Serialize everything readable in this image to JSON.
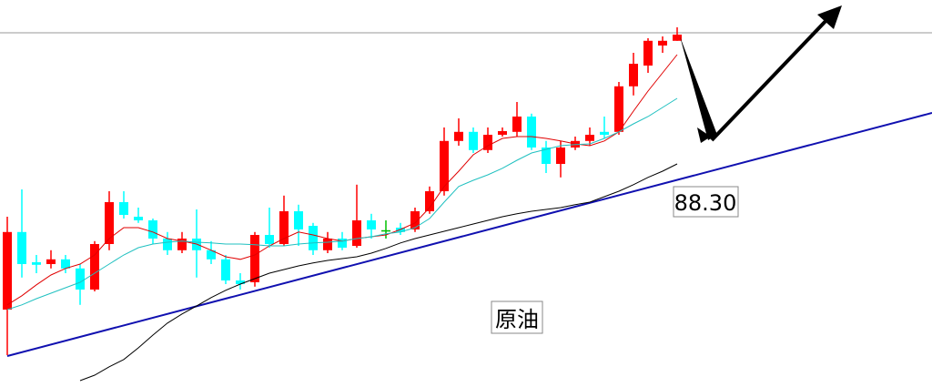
{
  "chart_data": {
    "type": "candlestick",
    "ylim": [
      82.375,
      93
    ],
    "up_color": "#ff0000",
    "down_color": "#00ffff",
    "flat_color": "#00c000",
    "open": [
      84.5,
      86.63,
      85.8,
      85.75,
      85.88,
      85.63,
      85.05,
      86.3,
      87.45,
      87.05,
      86.95,
      86.45,
      86.13,
      86.45,
      86.13,
      85.88,
      85.3,
      85.25,
      86.55,
      86.3,
      87.2,
      86.8,
      86.13,
      86.45,
      86.25,
      86.95,
      86.68,
      86.75,
      86.7,
      87.2,
      87.75,
      89.13,
      89.38,
      88.88,
      89.3,
      89.38,
      89.8,
      88.95,
      88.5,
      88.95,
      89.13,
      89.38,
      89.38,
      90.63,
      91.2,
      91.75,
      91.88
    ],
    "high": [
      87.05,
      87.8,
      86.0,
      86.13,
      86.0,
      85.75,
      86.38,
      87.75,
      87.75,
      87.3,
      87.0,
      86.63,
      86.63,
      87.25,
      86.38,
      86.0,
      85.5,
      86.63,
      87.3,
      87.63,
      87.38,
      86.88,
      86.63,
      86.63,
      87.93,
      87.13,
      86.95,
      86.88,
      87.3,
      87.88,
      89.5,
      89.75,
      89.5,
      89.5,
      89.5,
      90.2,
      89.88,
      89.13,
      89.13,
      89.25,
      89.5,
      89.8,
      90.75,
      91.55,
      91.95,
      92.0,
      92.25
    ],
    "low": [
      83.25,
      85.38,
      85.5,
      85.63,
      85.5,
      84.63,
      85.0,
      86.13,
      87.0,
      86.88,
      86.3,
      86.0,
      86.05,
      85.38,
      85.75,
      85.2,
      85.05,
      85.13,
      86.2,
      86.25,
      86.25,
      86.0,
      86.05,
      86.13,
      86.2,
      86.45,
      86.45,
      86.55,
      86.63,
      87.13,
      87.63,
      89.0,
      88.8,
      88.8,
      89.25,
      89.25,
      88.88,
      88.25,
      88.13,
      88.88,
      89.0,
      89.2,
      89.3,
      90.38,
      91.0,
      91.55,
      91.88
    ],
    "close": [
      86.63,
      85.75,
      85.73,
      85.88,
      85.63,
      85.05,
      86.3,
      87.45,
      87.1,
      86.95,
      86.45,
      86.13,
      86.45,
      86.13,
      85.88,
      85.3,
      85.2,
      86.55,
      86.3,
      87.2,
      86.7,
      86.13,
      86.45,
      86.2,
      86.95,
      86.7,
      86.68,
      86.63,
      87.2,
      87.75,
      89.13,
      89.38,
      88.88,
      89.3,
      89.4,
      89.8,
      88.95,
      88.5,
      88.95,
      89.13,
      89.3,
      89.3,
      90.63,
      91.25,
      91.88,
      91.88,
      92.05
    ],
    "series": [
      {
        "color": "#e00000",
        "values": [
          84.63,
          84.88,
          85.18,
          85.45,
          85.63,
          85.75,
          86.0,
          86.45,
          86.75,
          86.75,
          86.63,
          86.45,
          86.38,
          86.3,
          86.13,
          85.95,
          85.88,
          86.0,
          86.25,
          86.45,
          86.63,
          86.55,
          86.45,
          86.38,
          86.45,
          86.5,
          86.55,
          86.7,
          86.88,
          87.3,
          87.88,
          88.3,
          88.75,
          89.0,
          89.2,
          89.25,
          89.25,
          89.2,
          89.13,
          89.05,
          89.0,
          89.13,
          89.38,
          89.95,
          90.5,
          91.0,
          91.5
        ]
      },
      {
        "color": "#20c0c0",
        "values": [
          84.5,
          84.63,
          84.8,
          84.95,
          85.1,
          85.25,
          85.5,
          85.75,
          86.0,
          86.2,
          86.3,
          86.35,
          86.38,
          86.35,
          86.33,
          86.3,
          86.3,
          86.28,
          86.25,
          86.25,
          86.3,
          86.33,
          86.35,
          86.38,
          86.45,
          86.5,
          86.58,
          86.63,
          86.75,
          87.0,
          87.45,
          87.88,
          88.05,
          88.2,
          88.38,
          88.6,
          88.8,
          88.9,
          89.0,
          89.03,
          89.05,
          89.2,
          89.38,
          89.6,
          89.8,
          90.05,
          90.3
        ]
      },
      {
        "color": "#000000",
        "values": [
          null,
          null,
          null,
          null,
          null,
          82.55,
          82.7,
          82.93,
          83.13,
          83.45,
          83.8,
          84.13,
          84.38,
          84.6,
          84.83,
          85.03,
          85.2,
          85.35,
          85.5,
          85.6,
          85.7,
          85.78,
          85.85,
          85.9,
          85.95,
          86.05,
          86.18,
          86.33,
          86.45,
          86.55,
          86.65,
          86.75,
          86.85,
          86.95,
          87.05,
          87.13,
          87.2,
          87.25,
          87.3,
          87.38,
          87.45,
          87.6,
          87.75,
          87.93,
          88.13,
          88.3,
          88.5
        ]
      }
    ],
    "annotations": [
      {
        "text": "88.30"
      },
      {
        "text": "原油"
      }
    ]
  }
}
